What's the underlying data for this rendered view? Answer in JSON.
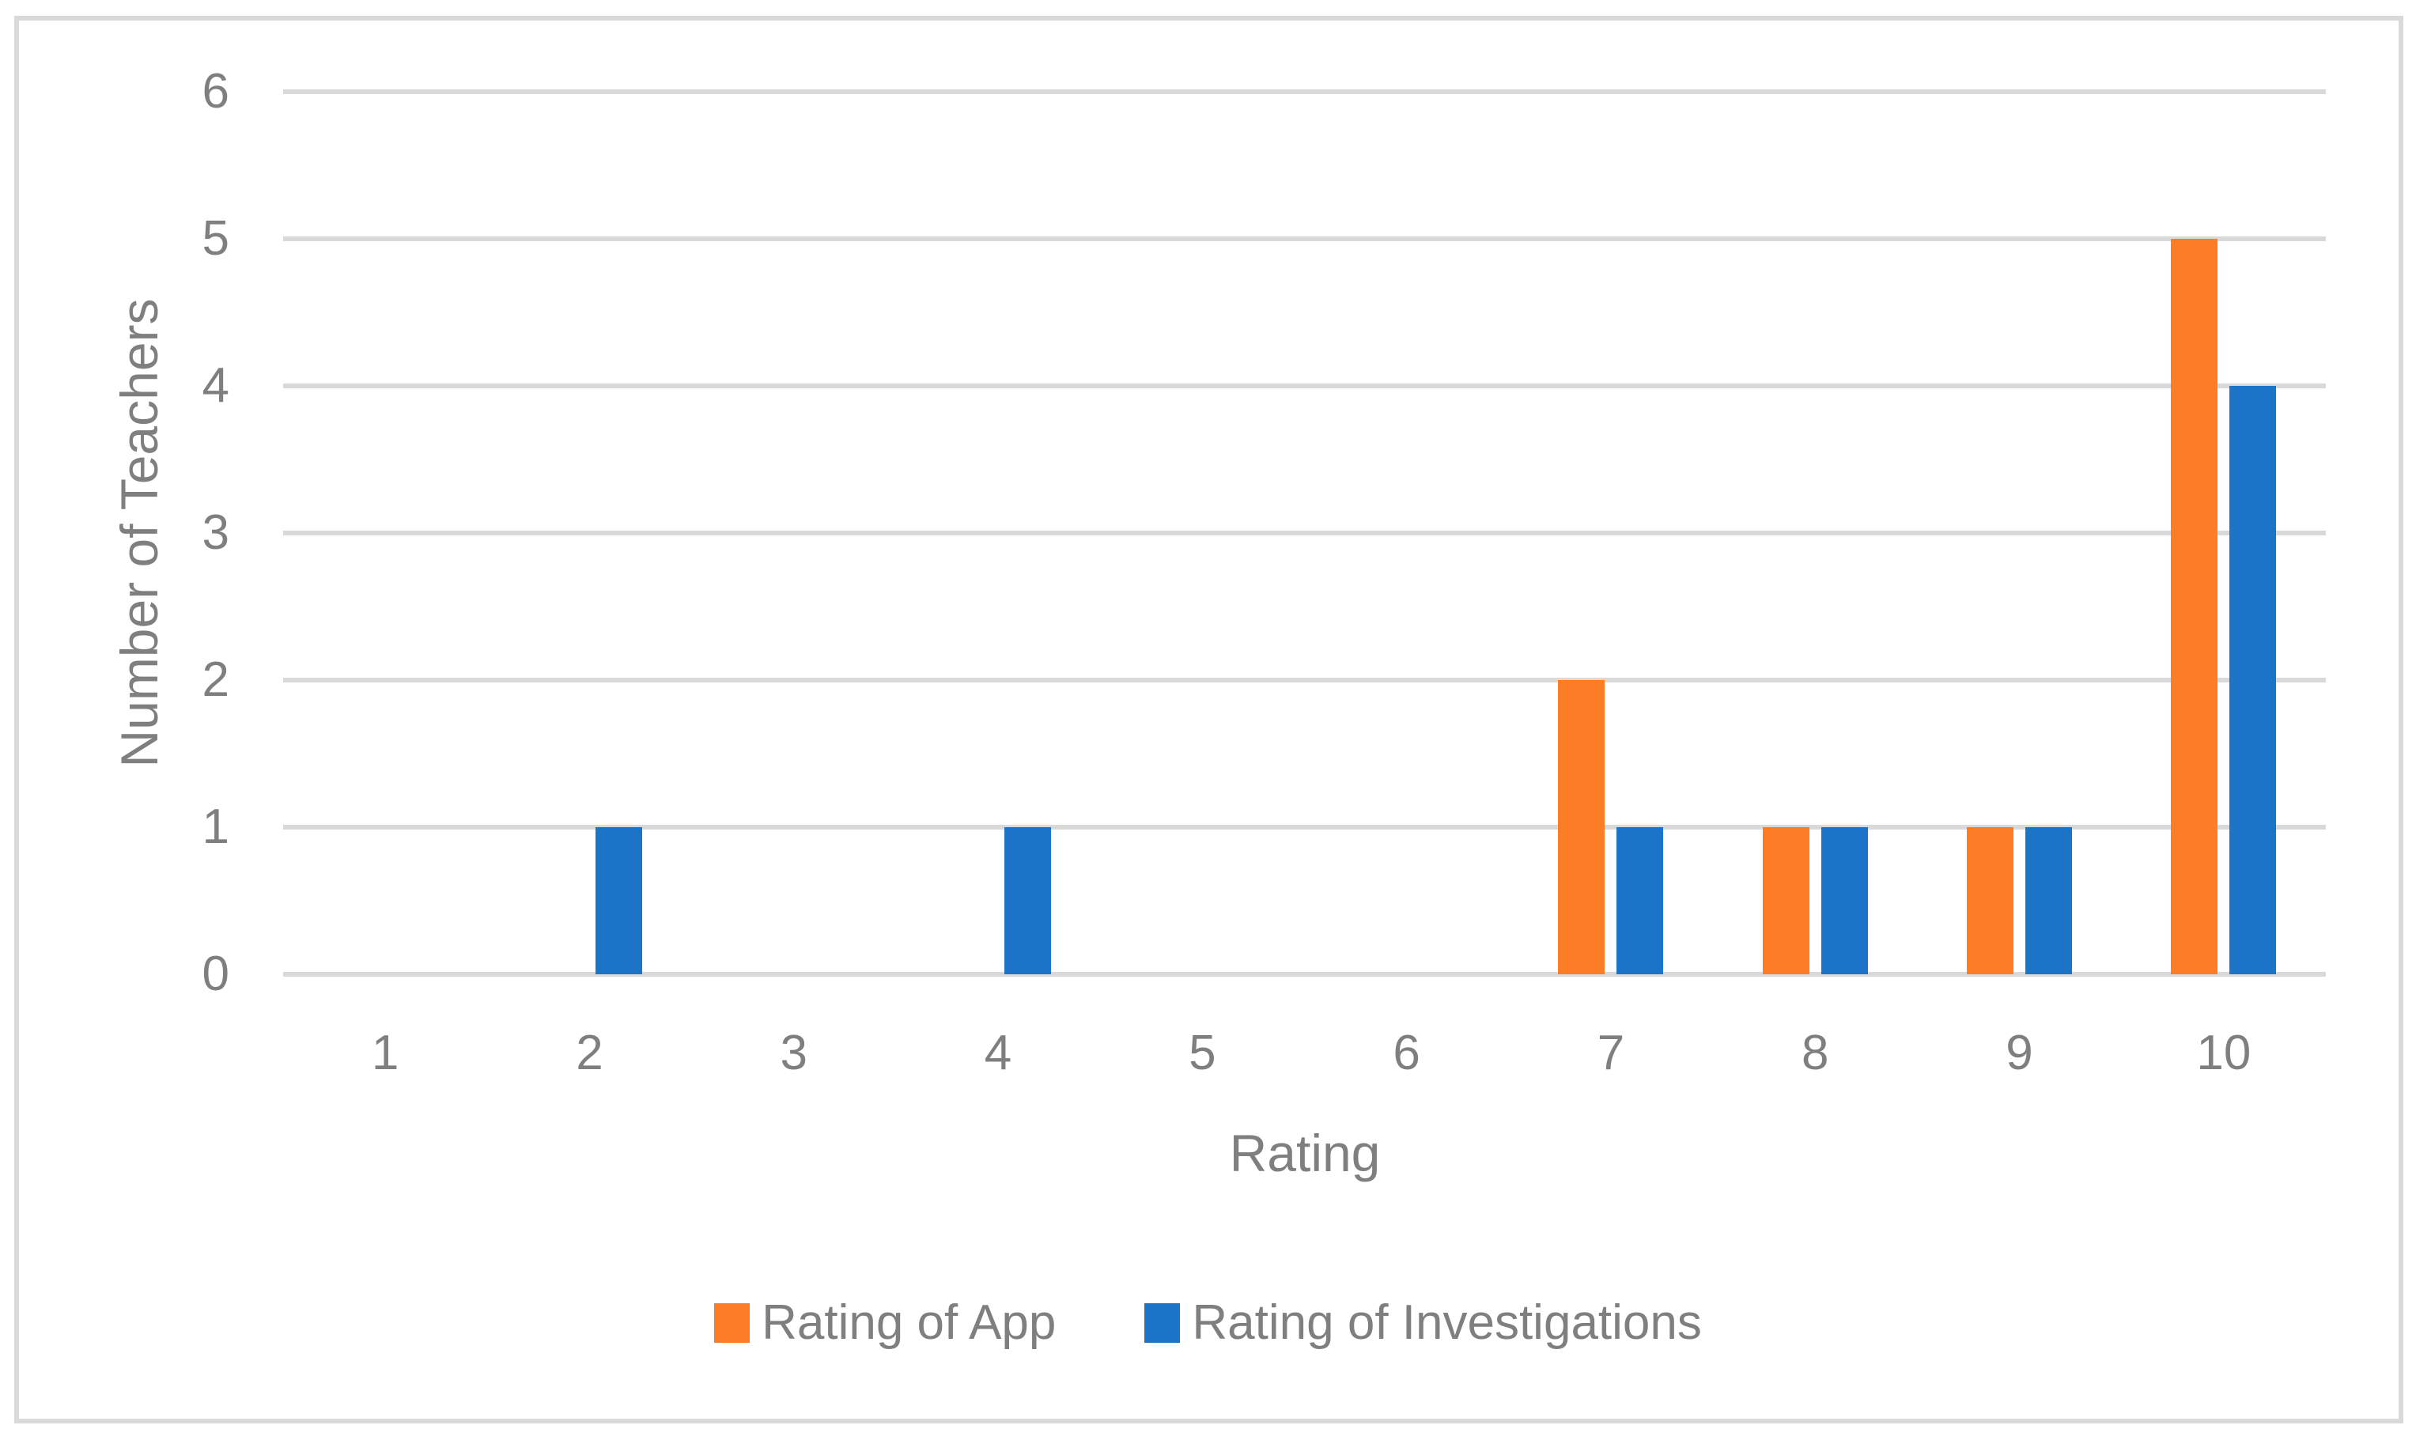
{
  "chart_data": {
    "type": "bar",
    "title": "",
    "categories": [
      "1",
      "2",
      "3",
      "4",
      "5",
      "6",
      "7",
      "8",
      "9",
      "10"
    ],
    "series": [
      {
        "name": "Rating of App",
        "color": "#FC7D26",
        "values": [
          0,
          0,
          0,
          0,
          0,
          0,
          2,
          1,
          1,
          5
        ]
      },
      {
        "name": "Rating of Investigations",
        "color": "#1B74C8",
        "values": [
          0,
          1,
          0,
          1,
          0,
          0,
          1,
          1,
          1,
          4
        ]
      }
    ],
    "xlabel": "Rating",
    "ylabel": "Number of Teachers",
    "ylim": [
      0,
      6
    ],
    "yticks": [
      0,
      1,
      2,
      3,
      4,
      5,
      6
    ],
    "grid": "horizontal-only",
    "legend_position": "bottom-center"
  },
  "colors": {
    "background": "#FFFFFF",
    "frame_border": "#D9D9D9",
    "gridline": "#D9D9D9",
    "text": "#7F7F7F",
    "series_app": "#FC7D26",
    "series_investigations": "#1B74C8"
  }
}
